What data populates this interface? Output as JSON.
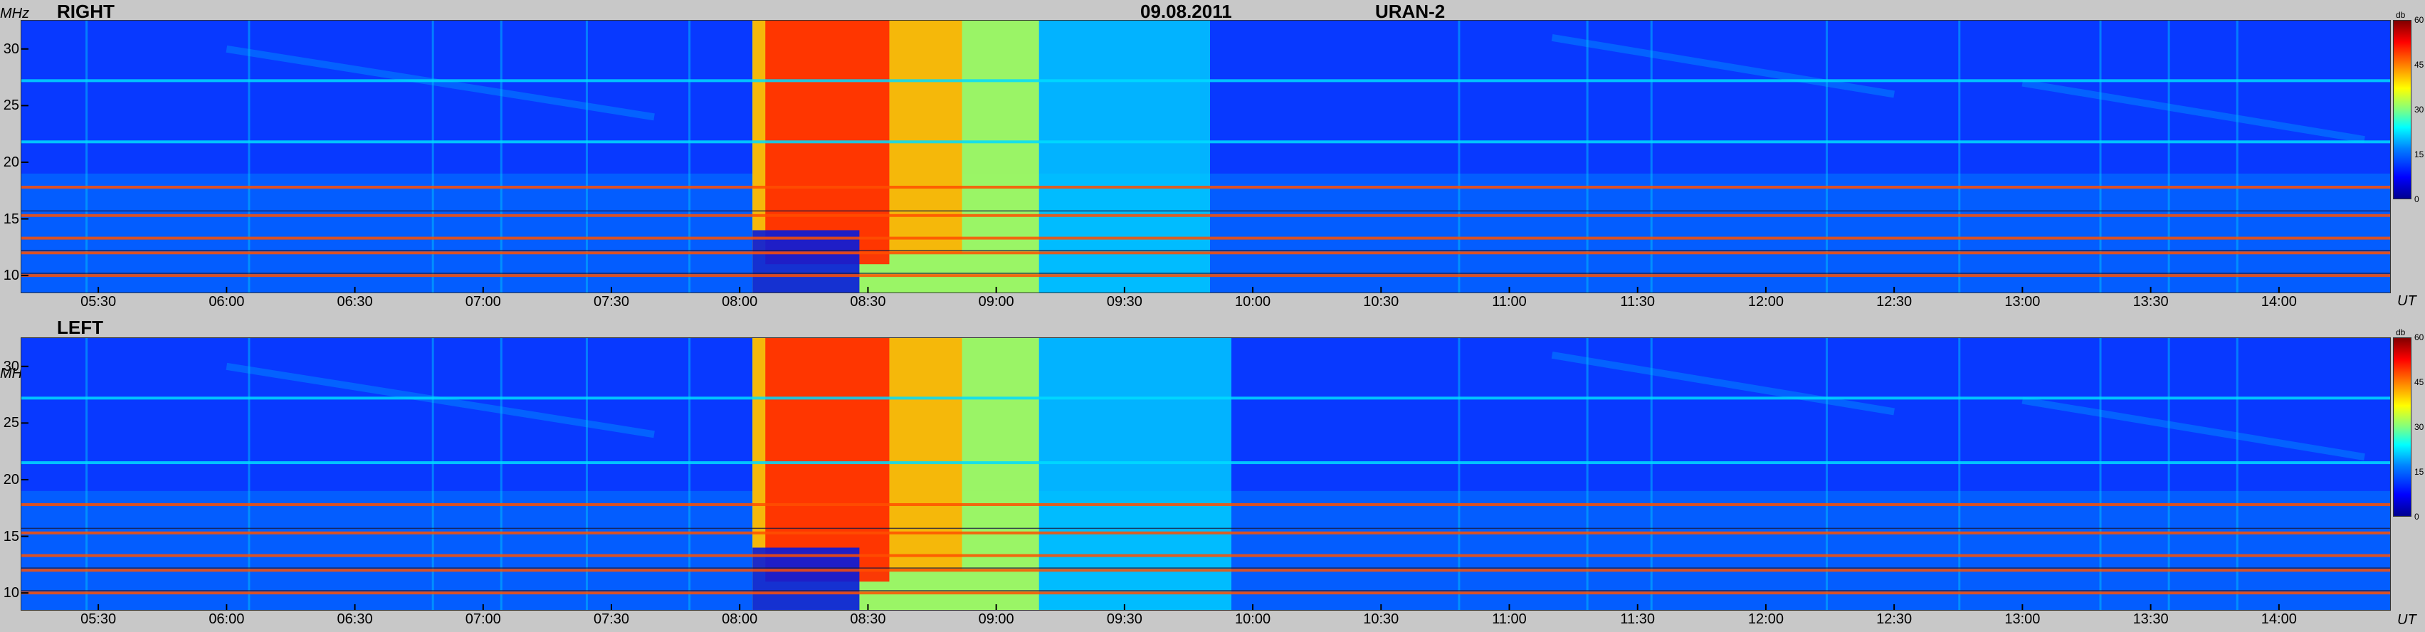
{
  "header": {
    "date": "09.08.2011",
    "instrument": "URAN-2"
  },
  "colors": {
    "background": "#c8c8c8",
    "low": "#0a3cf0",
    "mid": "#00ffff",
    "high": "#ff0000",
    "peak": "#800000"
  },
  "colorbar": {
    "unit": "db",
    "ticks": [
      "60",
      "45",
      "30",
      "15",
      "0"
    ]
  },
  "chart_data": [
    {
      "type": "heatmap",
      "title": "RIGHT",
      "ylabel": "MHz",
      "xlabel": "UT",
      "xlim": [
        "05:12",
        "14:26"
      ],
      "ylim": [
        8.5,
        32.5
      ],
      "zlim": [
        0,
        60
      ],
      "x_ticks": [
        "05:30",
        "06:00",
        "06:30",
        "07:00",
        "07:30",
        "08:00",
        "08:30",
        "09:00",
        "09:30",
        "10:00",
        "10:30",
        "11:00",
        "11:30",
        "12:00",
        "12:30",
        "13:00",
        "13:30",
        "14:00"
      ],
      "y_ticks": [
        "30",
        "25",
        "20",
        "15",
        "10"
      ],
      "events": [
        {
          "name": "burst",
          "start": "08:03",
          "end": "09:50",
          "peak_start": "08:06",
          "peak_end": "08:35",
          "level_db": 50
        }
      ],
      "interference_bands_mhz": [
        10,
        12,
        13.3,
        15.3,
        17.8,
        21.8,
        27.2
      ]
    },
    {
      "type": "heatmap",
      "title": "LEFT",
      "ylabel": "MHz",
      "xlabel": "UT",
      "xlim": [
        "05:12",
        "14:26"
      ],
      "ylim": [
        8.5,
        32.5
      ],
      "zlim": [
        0,
        60
      ],
      "x_ticks": [
        "05:30",
        "06:00",
        "06:30",
        "07:00",
        "07:30",
        "08:00",
        "08:30",
        "09:00",
        "09:30",
        "10:00",
        "10:30",
        "11:00",
        "11:30",
        "12:00",
        "12:30",
        "13:00",
        "13:30",
        "14:00"
      ],
      "y_ticks": [
        "30",
        "25",
        "20",
        "15",
        "10"
      ],
      "events": [
        {
          "name": "burst",
          "start": "08:03",
          "end": "09:55",
          "peak_start": "08:06",
          "peak_end": "08:35",
          "level_db": 50
        }
      ],
      "interference_bands_mhz": [
        10,
        12,
        13.3,
        15.3,
        17.8,
        21.5,
        27.2
      ]
    }
  ]
}
